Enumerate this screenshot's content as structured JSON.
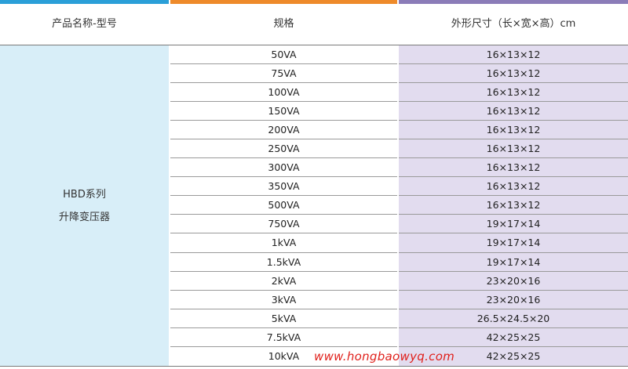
{
  "colors": {
    "bar_col1": "#2a9fd8",
    "bar_col2": "#ee8a2a",
    "bar_col3": "#8b7cb8",
    "name_bg": "#d8eef8",
    "size_bg": "#e2dcef",
    "watermark": "#e0201b"
  },
  "headers": {
    "col1": "产品名称-型号",
    "col2": "规格",
    "col3": "外形尺寸（长×宽×高）cm"
  },
  "product": {
    "line1": "HBD系列",
    "line2": "升降变压器"
  },
  "rows": [
    {
      "spec": "50VA",
      "size": "16×13×12"
    },
    {
      "spec": "75VA",
      "size": "16×13×12"
    },
    {
      "spec": "100VA",
      "size": "16×13×12"
    },
    {
      "spec": "150VA",
      "size": "16×13×12"
    },
    {
      "spec": "200VA",
      "size": "16×13×12"
    },
    {
      "spec": "250VA",
      "size": "16×13×12"
    },
    {
      "spec": "300VA",
      "size": "16×13×12"
    },
    {
      "spec": "350VA",
      "size": "16×13×12"
    },
    {
      "spec": "500VA",
      "size": "16×13×12"
    },
    {
      "spec": "750VA",
      "size": "19×17×14"
    },
    {
      "spec": "1kVA",
      "size": "19×17×14"
    },
    {
      "spec": "1.5kVA",
      "size": "19×17×14"
    },
    {
      "spec": "2kVA",
      "size": "23×20×16"
    },
    {
      "spec": "3kVA",
      "size": "23×20×16"
    },
    {
      "spec": "5kVA",
      "size": "26.5×24.5×20"
    },
    {
      "spec": "7.5kVA",
      "size": "42×25×25"
    },
    {
      "spec": "10kVA",
      "size": "42×25×25"
    }
  ],
  "watermark": "www.hongbaowyq.com"
}
